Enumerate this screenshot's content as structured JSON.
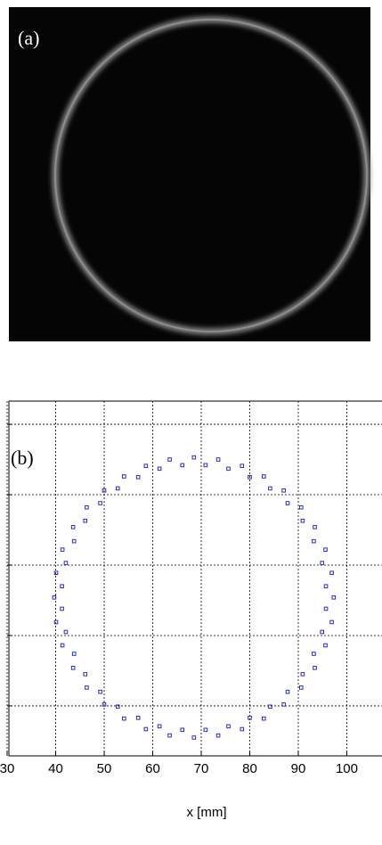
{
  "panel_a": {
    "label": "(a)"
  },
  "chart_data": {
    "type": "scatter",
    "label": "(b)",
    "xlabel": "x [mm]",
    "xlim": [
      30,
      107.25
    ],
    "xticks": [
      30,
      40,
      50,
      60,
      70,
      80,
      90,
      100,
      110
    ],
    "ylim": [
      -7.1,
      43.3
    ],
    "yticks": [
      0,
      10,
      20,
      30,
      40
    ],
    "grid": true,
    "series": [
      {
        "color": "#2a2ad0",
        "x": [
          97.3,
          96.9,
          95.6,
          93.4,
          90.6,
          87.0,
          82.9,
          78.4,
          73.5,
          68.5,
          63.5,
          58.6,
          54.1,
          50.0,
          46.4,
          43.6,
          41.4,
          40.1,
          39.7,
          40.1,
          41.4,
          43.6,
          46.4,
          50.0,
          54.1,
          58.6,
          63.5,
          68.5,
          73.5,
          78.4,
          82.9,
          87.0,
          90.6,
          93.4,
          95.6,
          96.9,
          95.7,
          94.9,
          93.2,
          90.9,
          87.8,
          84.2,
          80.0,
          75.6,
          70.9,
          66.1,
          61.4,
          57.0,
          52.8,
          49.2,
          46.1,
          43.8,
          42.1,
          41.3,
          41.3,
          42.1,
          43.8,
          46.1,
          49.2,
          52.8,
          57.0,
          61.4,
          66.1,
          70.9,
          75.6,
          80.0,
          84.2,
          87.8,
          90.9,
          93.2,
          94.9,
          95.7
        ],
        "y": [
          15.4,
          18.9,
          22.2,
          25.4,
          28.2,
          30.6,
          32.6,
          34.1,
          35.0,
          35.3,
          35.0,
          34.1,
          32.6,
          30.6,
          28.2,
          25.4,
          22.2,
          18.9,
          15.4,
          11.9,
          8.6,
          5.4,
          2.6,
          0.2,
          -1.8,
          -3.3,
          -4.2,
          -4.5,
          -4.2,
          -3.3,
          -1.8,
          0.2,
          2.6,
          5.4,
          8.6,
          11.9,
          17.0,
          20.3,
          23.4,
          26.3,
          28.8,
          30.9,
          32.5,
          33.7,
          34.2,
          34.2,
          33.7,
          32.5,
          30.9,
          28.8,
          26.3,
          23.4,
          20.3,
          17.0,
          13.8,
          10.5,
          7.4,
          4.5,
          2.0,
          -0.1,
          -1.7,
          -2.9,
          -3.4,
          -3.4,
          -2.9,
          -1.7,
          -0.1,
          2.0,
          4.5,
          7.4,
          10.5,
          13.8
        ]
      }
    ]
  }
}
